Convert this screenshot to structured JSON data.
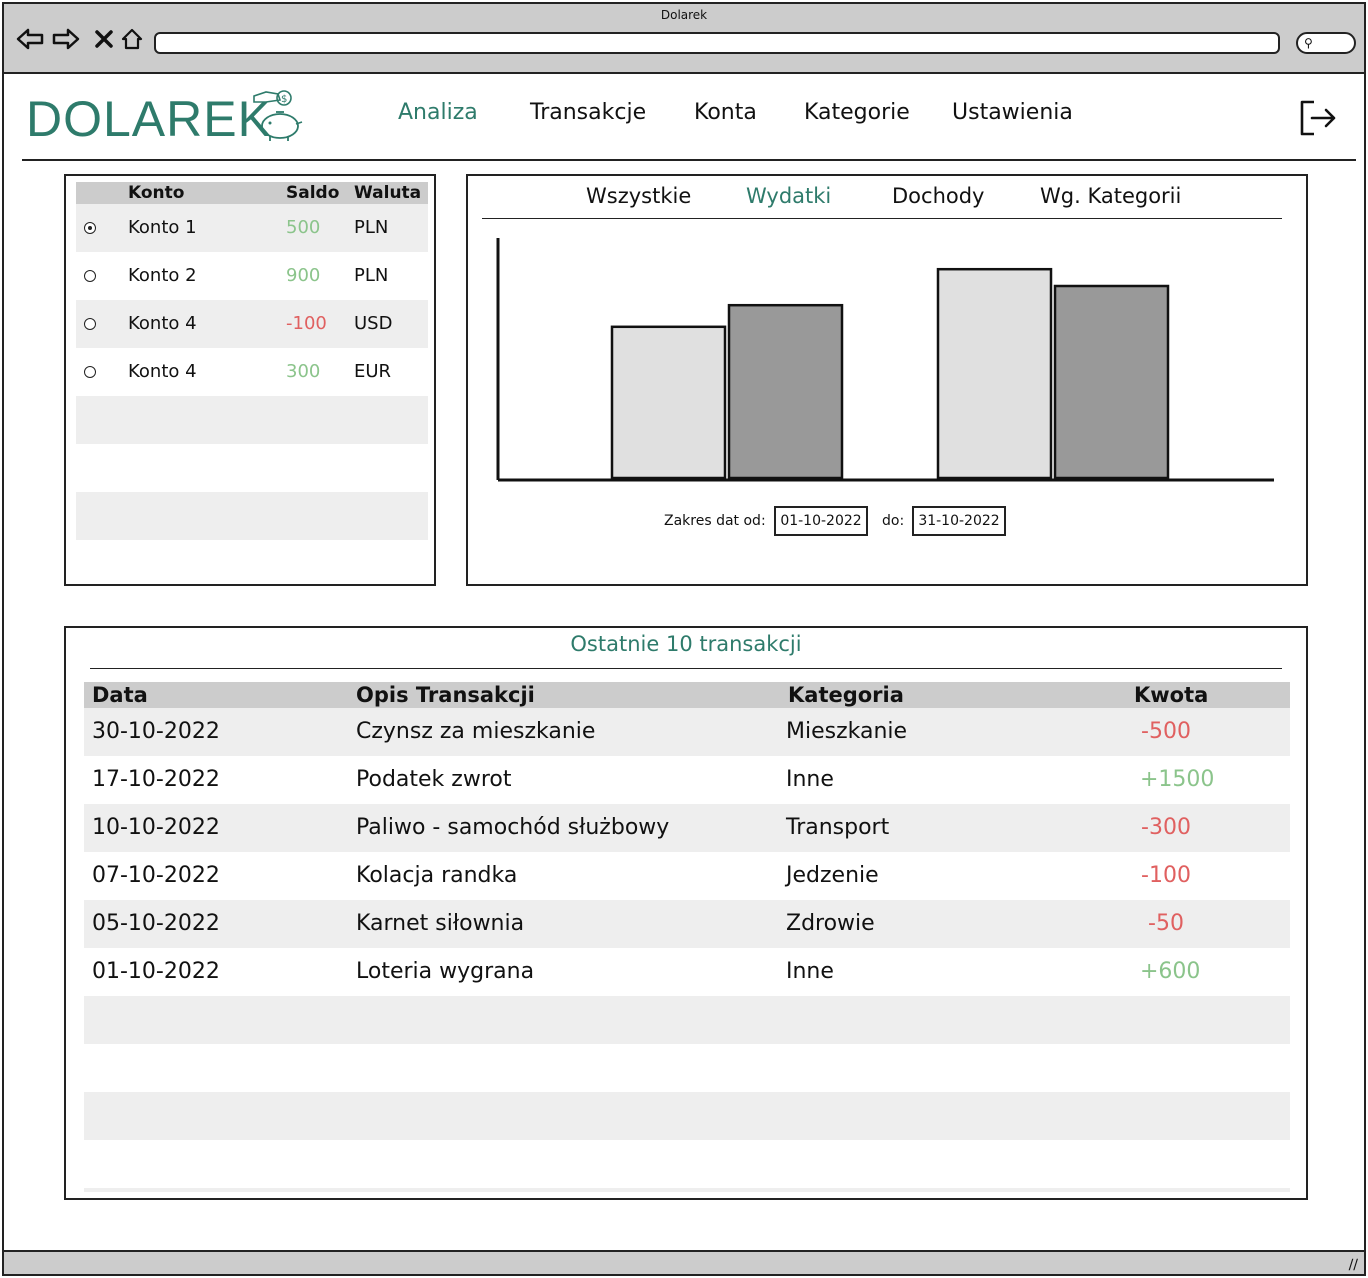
{
  "window": {
    "title": "Dolarek"
  },
  "header": {
    "logo": "DOLAREK",
    "menu": [
      {
        "label": "Analiza",
        "active": true
      },
      {
        "label": "Transakcje",
        "active": false
      },
      {
        "label": "Konta",
        "active": false
      },
      {
        "label": "Kategorie",
        "active": false
      },
      {
        "label": "Ustawienia",
        "active": false
      }
    ],
    "logout_icon": "logout-icon"
  },
  "accounts": {
    "headers": {
      "konto": "Konto",
      "saldo": "Saldo",
      "waluta": "Waluta"
    },
    "rows": [
      {
        "name": "Konto 1",
        "saldo": "500",
        "waluta": "PLN",
        "selected": true,
        "sign": "pos"
      },
      {
        "name": "Konto 2",
        "saldo": "900",
        "waluta": "PLN",
        "selected": false,
        "sign": "pos"
      },
      {
        "name": "Konto 4",
        "saldo": "-100",
        "waluta": "USD",
        "selected": false,
        "sign": "neg"
      },
      {
        "name": "Konto 4",
        "saldo": "300",
        "waluta": "EUR",
        "selected": false,
        "sign": "pos"
      }
    ]
  },
  "analysis": {
    "tabs": [
      {
        "label": "Wszystkie",
        "active": false
      },
      {
        "label": "Wydatki",
        "active": true
      },
      {
        "label": "Dochody",
        "active": false
      },
      {
        "label": "Wg. Kategorii",
        "active": false
      }
    ],
    "range_label": "Zakres dat od:",
    "date_from": "01-10-2022",
    "to_label": "do:",
    "date_to": "31-10-2022"
  },
  "chart_data": {
    "type": "bar",
    "categories": [
      "",
      ""
    ],
    "series": [
      {
        "values": [
          63,
          87
        ],
        "color": "#e0e0e0"
      },
      {
        "values": [
          72,
          80
        ],
        "color": "#999999"
      }
    ],
    "ylim": [
      0,
      100
    ],
    "grid": false
  },
  "transactions": {
    "title": "Ostatnie 10 transakcji",
    "headers": {
      "data": "Data",
      "opis": "Opis Transakcji",
      "kategoria": "Kategoria",
      "kwota": "Kwota"
    },
    "rows": [
      {
        "data": "30-10-2022",
        "opis": "Czynsz za mieszkanie",
        "kategoria": "Mieszkanie",
        "kwota": "-500",
        "sign": "neg"
      },
      {
        "data": "17-10-2022",
        "opis": "Podatek zwrot",
        "kategoria": "Inne",
        "kwota": "+1500",
        "sign": "pos"
      },
      {
        "data": "10-10-2022",
        "opis": "Paliwo - samochód służbowy",
        "kategoria": "Transport",
        "kwota": "-300",
        "sign": "neg"
      },
      {
        "data": "07-10-2022",
        "opis": "Kolacja randka",
        "kategoria": "Jedzenie",
        "kwota": "-100",
        "sign": "neg"
      },
      {
        "data": "05-10-2022",
        "opis": "Karnet siłownia",
        "kategoria": "Zdrowie",
        "kwota": "-50",
        "sign": "neg"
      },
      {
        "data": "01-10-2022",
        "opis": "Loteria wygrana",
        "kategoria": "Inne",
        "kwota": "+600",
        "sign": "pos"
      }
    ]
  }
}
